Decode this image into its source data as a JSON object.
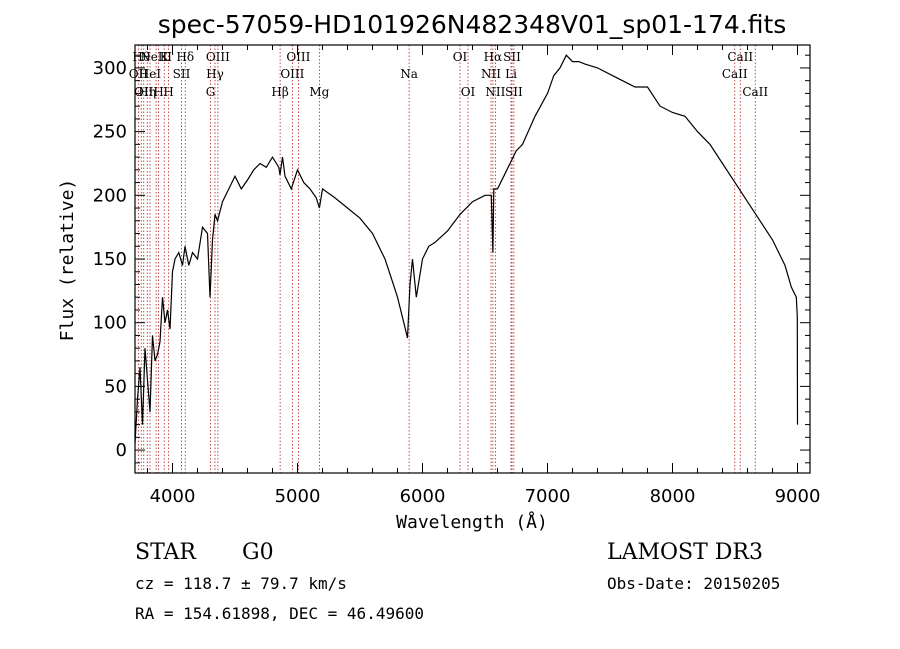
{
  "header": {
    "title": "spec-57059-HD101926N482348V01_sp01-174.fits"
  },
  "info": {
    "class_label": "STAR",
    "subclass_label": "G0",
    "survey": "LAMOST DR3",
    "cz": "cz = 118.7 ± 79.7 km/s",
    "obs_date": "Obs-Date: 20150205",
    "coords": "RA = 154.61898, DEC =  46.49600"
  },
  "colors": {
    "spectrum": "#000000",
    "line_markers": "#b22222"
  },
  "chart_data": {
    "type": "line",
    "title": "spec-57059-HD101926N482348V01_sp01-174.fits",
    "xlabel": "Wavelength (Å)",
    "ylabel": "Flux (relative)",
    "xlim": [
      3700,
      9100
    ],
    "ylim": [
      -18,
      318
    ],
    "xticks": [
      4000,
      5000,
      6000,
      7000,
      8000,
      9000
    ],
    "yticks": [
      0,
      50,
      100,
      150,
      200,
      250,
      300
    ],
    "grid": false,
    "legend": "none",
    "series": [
      {
        "x": [
          3700,
          3720,
          3740,
          3760,
          3780,
          3800,
          3820,
          3840,
          3860,
          3880,
          3900,
          3920,
          3940,
          3960,
          3980,
          4000,
          4020,
          4050,
          4080,
          4100,
          4130,
          4160,
          4200,
          4240,
          4280,
          4300,
          4320,
          4340,
          4360,
          4400,
          4450,
          4500,
          4550,
          4600,
          4650,
          4700,
          4750,
          4800,
          4850,
          4860,
          4880,
          4900,
          4950,
          5000,
          5050,
          5100,
          5150,
          5175,
          5200,
          5300,
          5400,
          5500,
          5600,
          5700,
          5750,
          5800,
          5850,
          5880,
          5890,
          5900,
          5920,
          5950,
          6000,
          6050,
          6100,
          6200,
          6300,
          6400,
          6500,
          6550,
          6563,
          6570,
          6600,
          6650,
          6700,
          6750,
          6800,
          6900,
          7000,
          7050,
          7100,
          7150,
          7200,
          7250,
          7300,
          7400,
          7500,
          7600,
          7700,
          7800,
          7900,
          8000,
          8100,
          8200,
          8300,
          8400,
          8500,
          8600,
          8700,
          8800,
          8900,
          8950,
          8990,
          8998,
          9000
        ],
        "values": [
          5,
          40,
          65,
          20,
          80,
          55,
          30,
          90,
          70,
          75,
          85,
          120,
          100,
          110,
          95,
          140,
          150,
          155,
          145,
          160,
          145,
          155,
          150,
          175,
          170,
          120,
          165,
          185,
          180,
          195,
          205,
          215,
          205,
          212,
          220,
          225,
          222,
          230,
          222,
          216,
          230,
          215,
          205,
          220,
          210,
          205,
          198,
          190,
          205,
          198,
          190,
          182,
          170,
          150,
          135,
          120,
          100,
          88,
          110,
          130,
          150,
          120,
          150,
          160,
          163,
          172,
          185,
          195,
          200,
          200,
          155,
          205,
          205,
          215,
          225,
          235,
          240,
          262,
          280,
          294,
          300,
          310,
          305,
          305,
          303,
          300,
          295,
          290,
          285,
          285,
          270,
          265,
          262,
          250,
          240,
          225,
          210,
          195,
          180,
          165,
          145,
          128,
          120,
          105,
          20
        ]
      }
    ],
    "lines": [
      {
        "wl": 3727,
        "label": "OII",
        "row": 2
      },
      {
        "wl": 3750,
        "label": "Hθ",
        "row": 1
      },
      {
        "wl": 3770,
        "label": "OII",
        "row": 3
      },
      {
        "wl": 3798,
        "label": "Hη",
        "row": 3
      },
      {
        "wl": 3820,
        "label": "HeI",
        "row": 2
      },
      {
        "wl": 3869,
        "label": "NeIII",
        "row": 1
      },
      {
        "wl": 3889,
        "label": "H",
        "row": 3
      },
      {
        "wl": 3934,
        "label": "K",
        "row": 1
      },
      {
        "wl": 3969,
        "label": "H",
        "row": 3
      },
      {
        "wl": 4072,
        "label": "SII",
        "row": 2
      },
      {
        "wl": 4102,
        "label": "Hδ",
        "row": 1
      },
      {
        "wl": 4304,
        "label": "G",
        "row": 3
      },
      {
        "wl": 4340,
        "label": "Hγ",
        "row": 2
      },
      {
        "wl": 4363,
        "label": "OIII",
        "row": 1
      },
      {
        "wl": 4861,
        "label": "Hβ",
        "row": 3
      },
      {
        "wl": 4959,
        "label": "OIII",
        "row": 2
      },
      {
        "wl": 5007,
        "label": "OIII",
        "row": 1
      },
      {
        "wl": 5175,
        "label": "Mg",
        "row": 3
      },
      {
        "wl": 5893,
        "label": "Na",
        "row": 2
      },
      {
        "wl": 6300,
        "label": "OI",
        "row": 1
      },
      {
        "wl": 6364,
        "label": "OI",
        "row": 3
      },
      {
        "wl": 6548,
        "label": "NII",
        "row": 2
      },
      {
        "wl": 6563,
        "label": "Hα",
        "row": 1
      },
      {
        "wl": 6583,
        "label": "NII",
        "row": 3
      },
      {
        "wl": 6708,
        "label": "Li",
        "row": 2
      },
      {
        "wl": 6716,
        "label": "SII",
        "row": 1
      },
      {
        "wl": 6731,
        "label": "SII",
        "row": 3
      },
      {
        "wl": 8498,
        "label": "CaII",
        "row": 2
      },
      {
        "wl": 8542,
        "label": "CaII",
        "row": 1
      },
      {
        "wl": 8662,
        "label": "CaII",
        "row": 3
      }
    ]
  }
}
